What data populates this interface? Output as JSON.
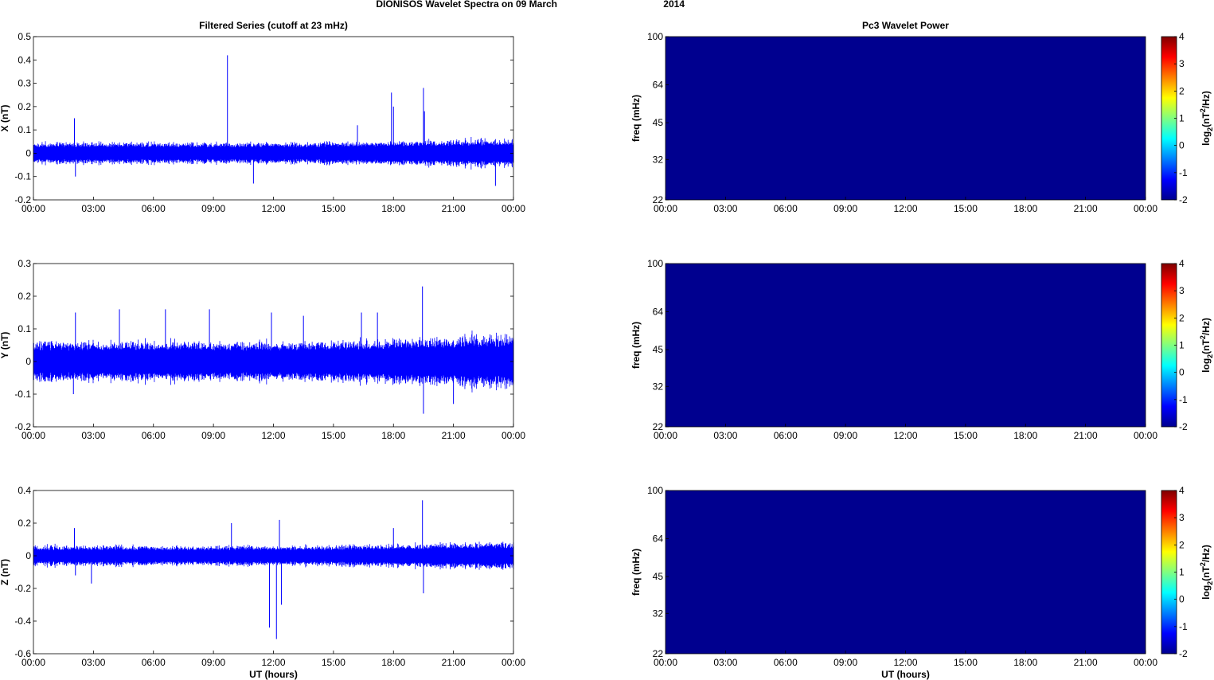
{
  "figure": {
    "title_main": "DIONISOS Wavelet Spectra on 09 March",
    "title_year": "2014"
  },
  "colors": {
    "series_line": "#0000ff",
    "spectrum_fill": "#00008f",
    "axis": "#000000"
  },
  "chart_data": [
    {
      "type": "line",
      "title": "Filtered Series (cutoff at 23 mHz)",
      "xlabel": "",
      "ylabel": "X (nT)",
      "xticks": [
        "00:00",
        "03:00",
        "06:00",
        "09:00",
        "12:00",
        "15:00",
        "18:00",
        "21:00",
        "00:00"
      ],
      "yticks": [
        "0.5",
        "0.4",
        "0.3",
        "0.2",
        "0.1",
        "0",
        "-0.1",
        "-0.2"
      ],
      "ylim": [
        -0.2,
        0.5
      ],
      "xlim_hours": [
        0,
        24
      ],
      "series": [
        {
          "noise_band": 0.045,
          "spikes": [
            {
              "x": 2.05,
              "y": 0.15
            },
            {
              "x": 2.1,
              "y": -0.1
            },
            {
              "x": 9.7,
              "y": 0.42
            },
            {
              "x": 17.9,
              "y": 0.26
            },
            {
              "x": 18.0,
              "y": 0.2
            },
            {
              "x": 19.5,
              "y": 0.28
            },
            {
              "x": 19.55,
              "y": 0.18
            },
            {
              "x": 23.1,
              "y": -0.14
            },
            {
              "x": 11.0,
              "y": -0.13
            },
            {
              "x": 16.2,
              "y": 0.12
            }
          ]
        }
      ]
    },
    {
      "type": "heatmap",
      "title": "Pc3 Wavelet Power",
      "xlabel": "",
      "ylabel": "freq (mHz)",
      "xticks": [
        "00:00",
        "03:00",
        "06:00",
        "09:00",
        "12:00",
        "15:00",
        "18:00",
        "21:00",
        "00:00"
      ],
      "yticks": [
        "100",
        "64",
        "45",
        "32",
        "22"
      ],
      "colorbar_label": "log2(nT2/Hz)",
      "colorbar_ticks": [
        "4",
        "3",
        "2",
        "1",
        "0",
        "-1",
        "-2"
      ],
      "clim": [
        -2,
        4
      ],
      "value": -2
    },
    {
      "type": "line",
      "title": "",
      "xlabel": "",
      "ylabel": "Y (nT)",
      "xticks": [
        "00:00",
        "03:00",
        "06:00",
        "09:00",
        "12:00",
        "15:00",
        "18:00",
        "21:00",
        "00:00"
      ],
      "yticks": [
        "0.3",
        "0.2",
        "0.1",
        "0",
        "-0.1",
        "-0.2"
      ],
      "ylim": [
        -0.2,
        0.3
      ],
      "xlim_hours": [
        0,
        24
      ],
      "series": [
        {
          "noise_band": 0.06,
          "spikes": [
            {
              "x": 2.0,
              "y": -0.1
            },
            {
              "x": 2.1,
              "y": 0.15
            },
            {
              "x": 4.3,
              "y": 0.16
            },
            {
              "x": 6.6,
              "y": 0.16
            },
            {
              "x": 8.8,
              "y": 0.16
            },
            {
              "x": 11.9,
              "y": 0.15
            },
            {
              "x": 16.4,
              "y": 0.15
            },
            {
              "x": 19.45,
              "y": 0.23
            },
            {
              "x": 19.5,
              "y": -0.16
            },
            {
              "x": 21.0,
              "y": -0.13
            },
            {
              "x": 13.5,
              "y": 0.14
            },
            {
              "x": 17.2,
              "y": 0.15
            }
          ]
        }
      ]
    },
    {
      "type": "heatmap",
      "title": "",
      "xlabel": "",
      "ylabel": "freq (mHz)",
      "xticks": [
        "00:00",
        "03:00",
        "06:00",
        "09:00",
        "12:00",
        "15:00",
        "18:00",
        "21:00",
        "00:00"
      ],
      "yticks": [
        "100",
        "64",
        "45",
        "32",
        "22"
      ],
      "colorbar_label": "log2(nT2/Hz)",
      "colorbar_ticks": [
        "4",
        "3",
        "2",
        "1",
        "0",
        "-1",
        "-2"
      ],
      "clim": [
        -2,
        4
      ],
      "value": -2
    },
    {
      "type": "line",
      "title": "",
      "xlabel": "UT (hours)",
      "ylabel": "Z (nT)",
      "xticks": [
        "00:00",
        "03:00",
        "06:00",
        "09:00",
        "12:00",
        "15:00",
        "18:00",
        "21:00",
        "00:00"
      ],
      "yticks": [
        "0.4",
        "0.2",
        "0",
        "-0.2",
        "-0.4",
        "-0.6"
      ],
      "ylim": [
        -0.6,
        0.4
      ],
      "xlim_hours": [
        0,
        24
      ],
      "series": [
        {
          "noise_band": 0.06,
          "spikes": [
            {
              "x": 2.05,
              "y": 0.17
            },
            {
              "x": 2.1,
              "y": -0.12
            },
            {
              "x": 2.9,
              "y": -0.17
            },
            {
              "x": 9.9,
              "y": 0.2
            },
            {
              "x": 11.8,
              "y": -0.44
            },
            {
              "x": 12.15,
              "y": -0.51
            },
            {
              "x": 12.3,
              "y": 0.22
            },
            {
              "x": 12.4,
              "y": -0.3
            },
            {
              "x": 19.45,
              "y": 0.34
            },
            {
              "x": 19.5,
              "y": -0.23
            },
            {
              "x": 18.0,
              "y": 0.17
            }
          ]
        }
      ]
    },
    {
      "type": "heatmap",
      "title": "",
      "xlabel": "UT (hours)",
      "ylabel": "freq (mHz)",
      "xticks": [
        "00:00",
        "03:00",
        "06:00",
        "09:00",
        "12:00",
        "15:00",
        "18:00",
        "21:00",
        "00:00"
      ],
      "yticks": [
        "100",
        "64",
        "45",
        "32",
        "22"
      ],
      "colorbar_label": "log2(nT2/Hz)",
      "colorbar_ticks": [
        "4",
        "3",
        "2",
        "1",
        "0",
        "-1",
        "-2"
      ],
      "clim": [
        -2,
        4
      ],
      "value": -2
    }
  ]
}
